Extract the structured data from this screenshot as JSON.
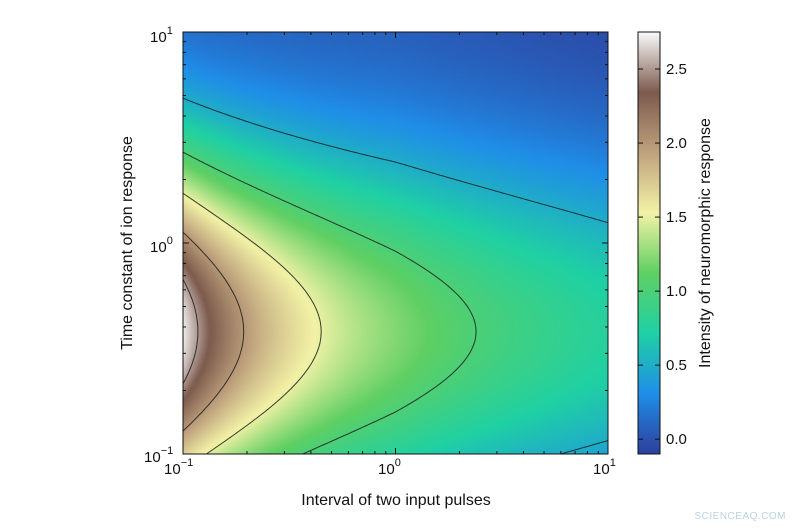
{
  "chart_data": {
    "type": "heatmap",
    "title": "",
    "xlabel": "Interval of two input pulses",
    "ylabel": "Time constant of ion response",
    "x_scale": "log",
    "y_scale": "log",
    "xlim": [
      0.1,
      10
    ],
    "ylim": [
      0.1,
      10
    ],
    "x_ticks": [
      {
        "base": "10",
        "exp": "−1"
      },
      {
        "base": "10",
        "exp": "0"
      },
      {
        "base": "10",
        "exp": "1"
      }
    ],
    "y_ticks": [
      {
        "base": "10",
        "exp": "−1"
      },
      {
        "base": "10",
        "exp": "0"
      },
      {
        "base": "10",
        "exp": "1"
      }
    ],
    "colorbar": {
      "label": "Intensity of neuromorphic response",
      "range": [
        -0.1,
        2.75
      ],
      "ticks": [
        "0.0",
        "0.5",
        "1.0",
        "1.5",
        "2.0",
        "2.5"
      ],
      "colormap": [
        "#2d3f9c",
        "#1f8ee8",
        "#1fd0a4",
        "#5fcf63",
        "#f2f2a6",
        "#bfa27d",
        "#7c5a4d",
        "#f9fafa"
      ]
    },
    "contour_levels": [
      0.5,
      1.0,
      1.5,
      2.0,
      2.5
    ],
    "z_peak": 2.72,
    "grid": false,
    "legend": "none"
  },
  "watermark": "SCIENCEAQ.COM"
}
